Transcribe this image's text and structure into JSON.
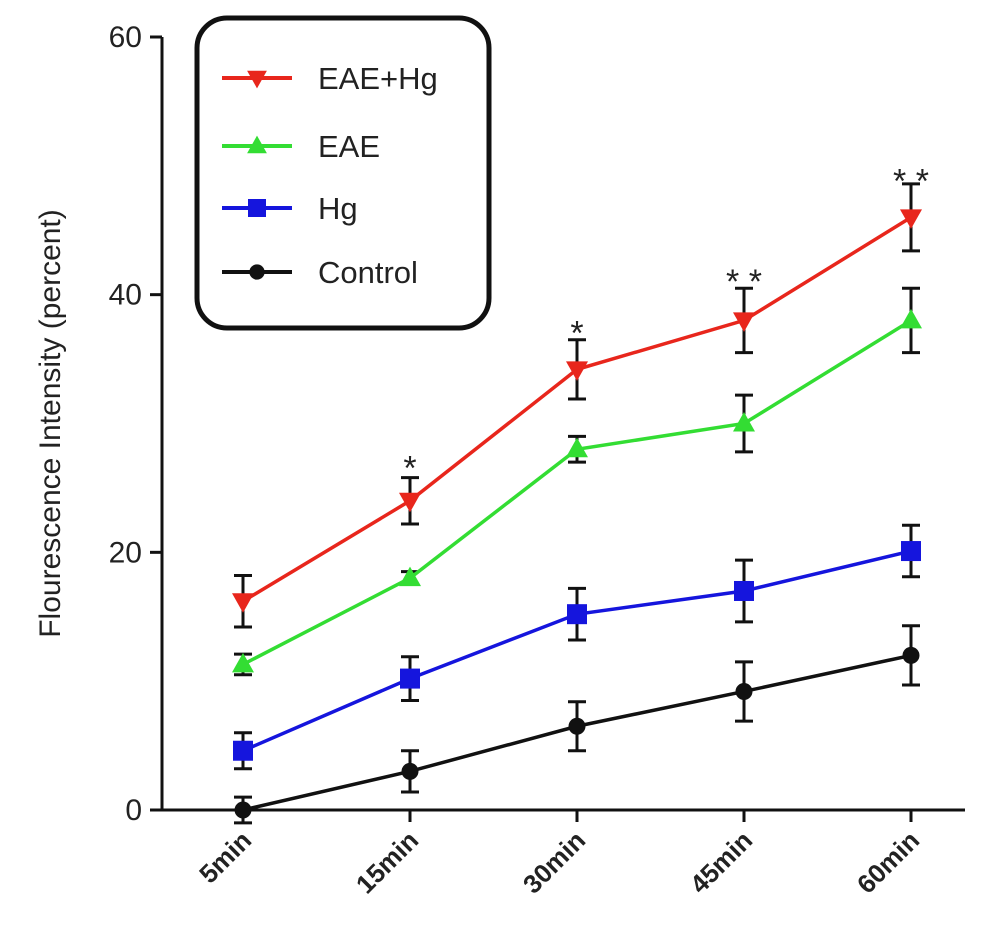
{
  "chart_data": {
    "type": "line",
    "title": "",
    "xlabel": "",
    "ylabel": "Flourescence Intensity (percent)",
    "categories": [
      "5min",
      "15min",
      "30min",
      "45min",
      "60min"
    ],
    "ylim": [
      0,
      60
    ],
    "yticks": [
      0,
      20,
      40,
      60
    ],
    "grid": false,
    "legend_position": "top-left",
    "series": [
      {
        "name": "EAE+Hg",
        "color": "#e8261c",
        "marker": "triangle-down",
        "values": [
          16.2,
          24.0,
          34.2,
          38.0,
          46.0
        ],
        "errors": [
          2.0,
          1.8,
          2.3,
          2.5,
          2.6
        ]
      },
      {
        "name": "EAE",
        "color": "#33dd33",
        "marker": "triangle-up",
        "values": [
          11.3,
          18.0,
          28.0,
          30.0,
          38.0
        ],
        "errors": [
          0.8,
          0.5,
          1.0,
          2.2,
          2.5
        ]
      },
      {
        "name": "Hg",
        "color": "#1515dd",
        "marker": "square",
        "values": [
          4.6,
          10.2,
          15.2,
          17.0,
          20.1
        ],
        "errors": [
          1.4,
          1.7,
          2.0,
          2.4,
          2.0
        ]
      },
      {
        "name": "Control",
        "color": "#111111",
        "marker": "circle",
        "values": [
          0.0,
          3.0,
          6.5,
          9.2,
          12.0
        ],
        "errors": [
          1.0,
          1.6,
          1.9,
          2.3,
          2.3
        ]
      }
    ],
    "annotations": [
      {
        "x": "15min",
        "y": 27.5,
        "text": "*"
      },
      {
        "x": "30min",
        "y": 38.0,
        "text": "*"
      },
      {
        "x": "45min",
        "y": 42.0,
        "text": "* *"
      },
      {
        "x": "60min",
        "y": 49.8,
        "text": "* *"
      }
    ]
  }
}
